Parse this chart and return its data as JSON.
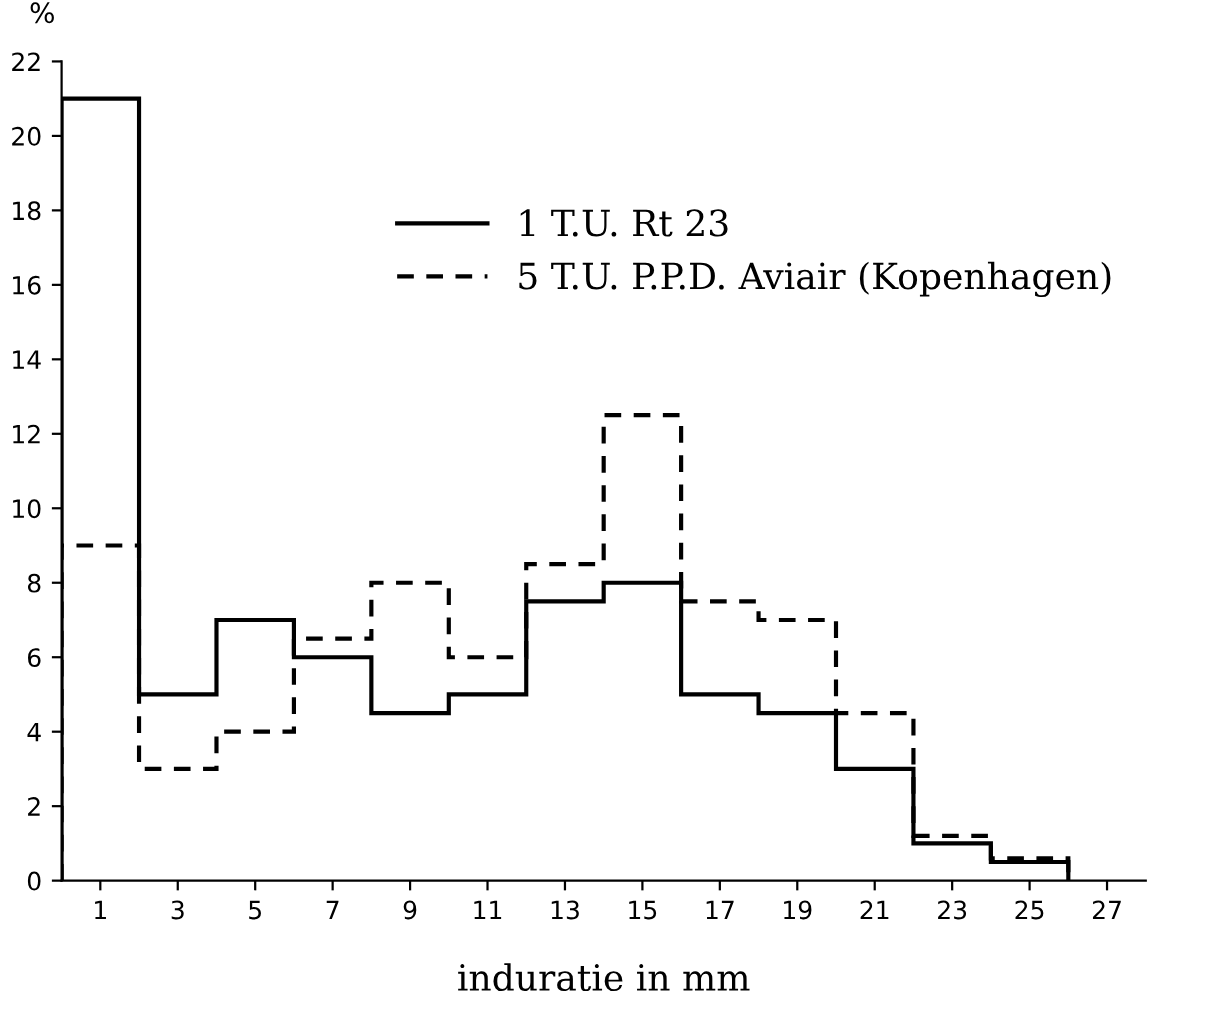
{
  "chart_data": {
    "type": "histogram",
    "xlabel": "induratie in mm",
    "ylabel": "%",
    "bins": [
      0,
      2,
      4,
      6,
      8,
      10,
      12,
      14,
      16,
      18,
      20,
      22,
      24,
      26
    ],
    "series": [
      {
        "name": "1 T.U. Rt 23",
        "color": "#000000",
        "line_style": "solid",
        "values": [
          21,
          5,
          7,
          6,
          4.5,
          5,
          7.5,
          8,
          5,
          4.5,
          3,
          1,
          0.5
        ]
      },
      {
        "name": "5 T.U. P.P.D. Aviair (Kopenhagen)",
        "color": "#000000",
        "line_style": "dashed",
        "values": [
          9,
          3,
          4,
          6.5,
          8,
          6,
          8.5,
          12.5,
          7.5,
          7,
          4.5,
          1.2,
          0.6
        ]
      }
    ],
    "xlim": [
      0,
      28
    ],
    "xticks": [
      1,
      3,
      5,
      7,
      9,
      11,
      13,
      15,
      17,
      19,
      21,
      23,
      25,
      27
    ],
    "ylim": [
      0,
      22
    ],
    "yticks": [
      0,
      2,
      4,
      6,
      8,
      10,
      12,
      14,
      16,
      18,
      20,
      22
    ],
    "grid": false,
    "legend": "top right"
  }
}
